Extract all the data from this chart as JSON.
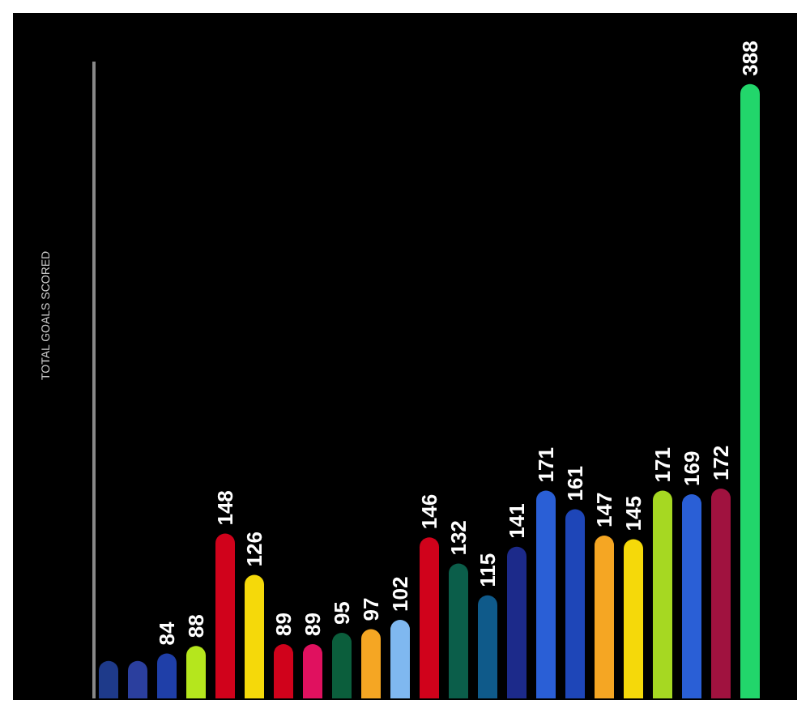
{
  "chart_data": {
    "type": "bar",
    "ylabel": "TOTAL GOALS SCORED",
    "categories": [
      null,
      null,
      null,
      null,
      null,
      null,
      null,
      null,
      null,
      null,
      null,
      null,
      null,
      null,
      null,
      null,
      null,
      null,
      null,
      null,
      null,
      null,
      null
    ],
    "values": [
      80,
      80,
      84,
      88,
      148,
      126,
      89,
      89,
      95,
      97,
      102,
      146,
      132,
      115,
      141,
      171,
      161,
      147,
      145,
      171,
      169,
      172,
      388
    ],
    "value_labels": [
      null,
      null,
      "84",
      "88",
      "148",
      "126",
      "89",
      "89",
      "95",
      "97",
      "102",
      "146",
      "132",
      "115",
      "141",
      "171",
      "161",
      "147",
      "145",
      "171",
      "169",
      "172",
      "388"
    ],
    "colors": [
      "#1e3a8a",
      "#2b3f9e",
      "#1f3fa8",
      "#b5e61d",
      "#d0021b",
      "#f5d90a",
      "#d0021b",
      "#e0115f",
      "#0b5e3c",
      "#f5a623",
      "#7fb8f0",
      "#d0021b",
      "#0b5e4a",
      "#0f5a8a",
      "#1c2a8a",
      "#2a5fd6",
      "#1e46b8",
      "#f5a623",
      "#f5d90a",
      "#a6d822",
      "#2a5fd6",
      "#a0123f",
      "#22d66b"
    ],
    "ylim": [
      60,
      400
    ]
  }
}
